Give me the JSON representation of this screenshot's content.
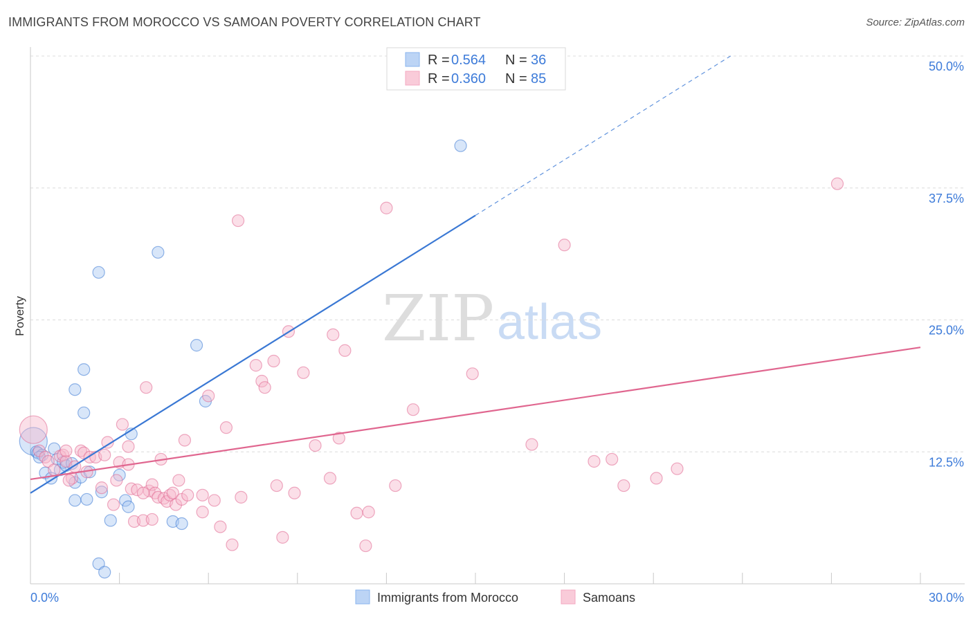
{
  "header": {
    "title": "IMMIGRANTS FROM MOROCCO VS SAMOAN POVERTY CORRELATION CHART",
    "source": "Source: ZipAtlas.com"
  },
  "watermark": {
    "zip": "ZIP",
    "atlas": "atlas"
  },
  "legend": {
    "r_label": "R =",
    "n_label": "N =",
    "entries": [
      {
        "r": "0.564",
        "n": "36",
        "color": "#8ab4ee"
      },
      {
        "r": "0.360",
        "n": "85",
        "color": "#f4a8c1"
      }
    ]
  },
  "bottom_legend": [
    "Immigrants from Morocco",
    "Samoans"
  ],
  "chart_data": {
    "type": "scatter",
    "title": "IMMIGRANTS FROM MOROCCO VS SAMOAN POVERTY CORRELATION CHART",
    "xlabel": "",
    "ylabel": "Poverty",
    "xlim": [
      0,
      30
    ],
    "ylim": [
      0,
      50
    ],
    "x_tick_labels": [
      "0.0%",
      "30.0%"
    ],
    "y_ticks": [
      12.5,
      25.0,
      37.5,
      50.0
    ],
    "y_tick_labels": [
      "12.5%",
      "25.0%",
      "37.5%",
      "50.0%"
    ],
    "grid": true,
    "series": [
      {
        "name": "Immigrants from Morocco",
        "color": "#3a78d4",
        "fill": "#a9c8f2",
        "R": 0.564,
        "N": 36,
        "trend": {
          "x0": 0,
          "y0": 8.6,
          "x1": 15.0,
          "y1": 34.9,
          "dash_to_x": 23.6,
          "dash_to_y": 50.0
        },
        "points": [
          [
            0.1,
            13.5
          ],
          [
            0.2,
            12.5
          ],
          [
            0.25,
            12.4
          ],
          [
            0.4,
            12.2
          ],
          [
            0.5,
            10.5
          ],
          [
            0.7,
            10.0
          ],
          [
            0.8,
            12.8
          ],
          [
            0.9,
            11.8
          ],
          [
            1.0,
            10.8
          ],
          [
            1.1,
            11.5
          ],
          [
            1.2,
            11.2
          ],
          [
            1.4,
            11.4
          ],
          [
            1.5,
            9.6
          ],
          [
            1.7,
            10.1
          ],
          [
            1.5,
            7.9
          ],
          [
            1.9,
            8.0
          ],
          [
            2.0,
            10.6
          ],
          [
            2.4,
            8.7
          ],
          [
            2.7,
            6.0
          ],
          [
            3.0,
            10.3
          ],
          [
            3.2,
            7.9
          ],
          [
            3.3,
            7.3
          ],
          [
            3.4,
            14.2
          ],
          [
            2.3,
            1.9
          ],
          [
            2.5,
            1.1
          ],
          [
            1.5,
            18.4
          ],
          [
            1.8,
            16.2
          ],
          [
            1.8,
            20.3
          ],
          [
            2.3,
            29.5
          ],
          [
            4.3,
            31.4
          ],
          [
            4.8,
            5.9
          ],
          [
            5.1,
            5.7
          ],
          [
            5.6,
            22.6
          ],
          [
            5.9,
            17.3
          ],
          [
            14.5,
            41.5
          ],
          [
            0.3,
            12.0
          ]
        ]
      },
      {
        "name": "Samoans",
        "color": "#e0668f",
        "fill": "#f7b9cc",
        "R": 0.36,
        "N": 85,
        "trend": {
          "x0": 0,
          "y0": 9.9,
          "x1": 30,
          "y1": 22.4
        },
        "points": [
          [
            0.1,
            14.6
          ],
          [
            0.3,
            12.6
          ],
          [
            0.5,
            12.0
          ],
          [
            0.6,
            11.6
          ],
          [
            0.8,
            10.8
          ],
          [
            1.0,
            12.1
          ],
          [
            1.1,
            12.2
          ],
          [
            1.2,
            11.6
          ],
          [
            1.2,
            12.6
          ],
          [
            1.4,
            10.0
          ],
          [
            1.5,
            11.1
          ],
          [
            1.7,
            12.6
          ],
          [
            1.8,
            12.4
          ],
          [
            1.9,
            10.6
          ],
          [
            2.0,
            12.0
          ],
          [
            2.2,
            12.0
          ],
          [
            2.4,
            9.1
          ],
          [
            2.6,
            13.4
          ],
          [
            2.8,
            7.5
          ],
          [
            3.0,
            11.5
          ],
          [
            3.1,
            15.1
          ],
          [
            3.3,
            11.3
          ],
          [
            3.4,
            9.0
          ],
          [
            3.5,
            5.9
          ],
          [
            3.6,
            8.9
          ],
          [
            3.8,
            6.0
          ],
          [
            3.9,
            18.6
          ],
          [
            4.0,
            8.8
          ],
          [
            4.1,
            9.4
          ],
          [
            4.2,
            8.6
          ],
          [
            4.3,
            8.2
          ],
          [
            4.4,
            11.8
          ],
          [
            4.5,
            8.1
          ],
          [
            4.6,
            7.8
          ],
          [
            4.7,
            8.4
          ],
          [
            4.8,
            8.6
          ],
          [
            4.9,
            7.5
          ],
          [
            5.0,
            9.8
          ],
          [
            5.1,
            8.0
          ],
          [
            5.2,
            13.6
          ],
          [
            5.3,
            8.4
          ],
          [
            5.8,
            8.4
          ],
          [
            6.0,
            17.8
          ],
          [
            6.2,
            7.9
          ],
          [
            6.4,
            5.4
          ],
          [
            6.6,
            14.8
          ],
          [
            6.8,
            3.7
          ],
          [
            7.0,
            34.4
          ],
          [
            7.1,
            8.2
          ],
          [
            7.6,
            20.7
          ],
          [
            7.8,
            19.2
          ],
          [
            7.9,
            18.6
          ],
          [
            8.2,
            21.1
          ],
          [
            8.3,
            9.3
          ],
          [
            8.5,
            4.4
          ],
          [
            8.9,
            8.6
          ],
          [
            9.2,
            20.0
          ],
          [
            8.7,
            23.9
          ],
          [
            9.6,
            13.1
          ],
          [
            10.1,
            10.0
          ],
          [
            10.2,
            23.6
          ],
          [
            10.4,
            13.8
          ],
          [
            10.6,
            22.1
          ],
          [
            11.0,
            6.7
          ],
          [
            11.4,
            6.8
          ],
          [
            11.3,
            3.6
          ],
          [
            12.0,
            35.6
          ],
          [
            12.3,
            9.3
          ],
          [
            12.9,
            16.5
          ],
          [
            14.9,
            19.9
          ],
          [
            16.9,
            13.2
          ],
          [
            18.0,
            32.1
          ],
          [
            19.0,
            11.6
          ],
          [
            19.6,
            11.8
          ],
          [
            20.0,
            9.3
          ],
          [
            21.1,
            10.0
          ],
          [
            21.8,
            10.9
          ],
          [
            27.2,
            37.9
          ],
          [
            2.5,
            12.2
          ],
          [
            1.3,
            9.8
          ],
          [
            3.8,
            8.6
          ],
          [
            3.3,
            13.0
          ],
          [
            2.9,
            9.8
          ],
          [
            4.1,
            6.1
          ],
          [
            5.8,
            6.8
          ]
        ]
      }
    ]
  }
}
